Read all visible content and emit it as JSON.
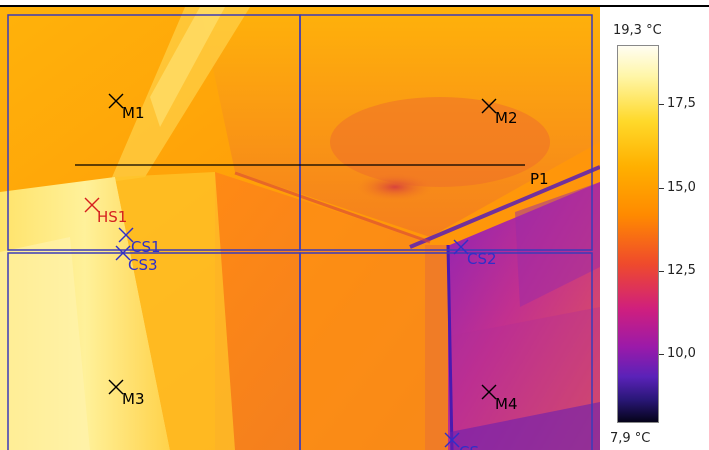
{
  "markers": [
    {
      "id": "M1",
      "kind": "measure",
      "color": "#000000"
    },
    {
      "id": "M2",
      "kind": "measure",
      "color": "#000000"
    },
    {
      "id": "M3",
      "kind": "measure",
      "color": "#000000"
    },
    {
      "id": "M4",
      "kind": "measure",
      "color": "#000000"
    },
    {
      "id": "HS1",
      "kind": "hot-spot",
      "color": "#d51f1f"
    },
    {
      "id": "CS1",
      "kind": "cold-spot",
      "color": "#2f2fc9"
    },
    {
      "id": "CS2",
      "kind": "cold-spot",
      "color": "#2f2fc9"
    },
    {
      "id": "CS3",
      "kind": "cold-spot",
      "color": "#2f2fc9"
    },
    {
      "id": "CS",
      "kind": "cold-spot",
      "color": "#2f2fc9"
    }
  ],
  "profile_line": {
    "label": "P1",
    "color": "#000000"
  },
  "temperature_scale": {
    "max_label": "19,3 °C",
    "min_label": "7,9 °C",
    "ticks": [
      "17,5",
      "15,0",
      "12,5",
      "10,0"
    ]
  },
  "colors": {
    "region_border": "#3b3bb8",
    "hot_marker": "#d51f1f",
    "cold_marker": "#2f2fc9"
  }
}
